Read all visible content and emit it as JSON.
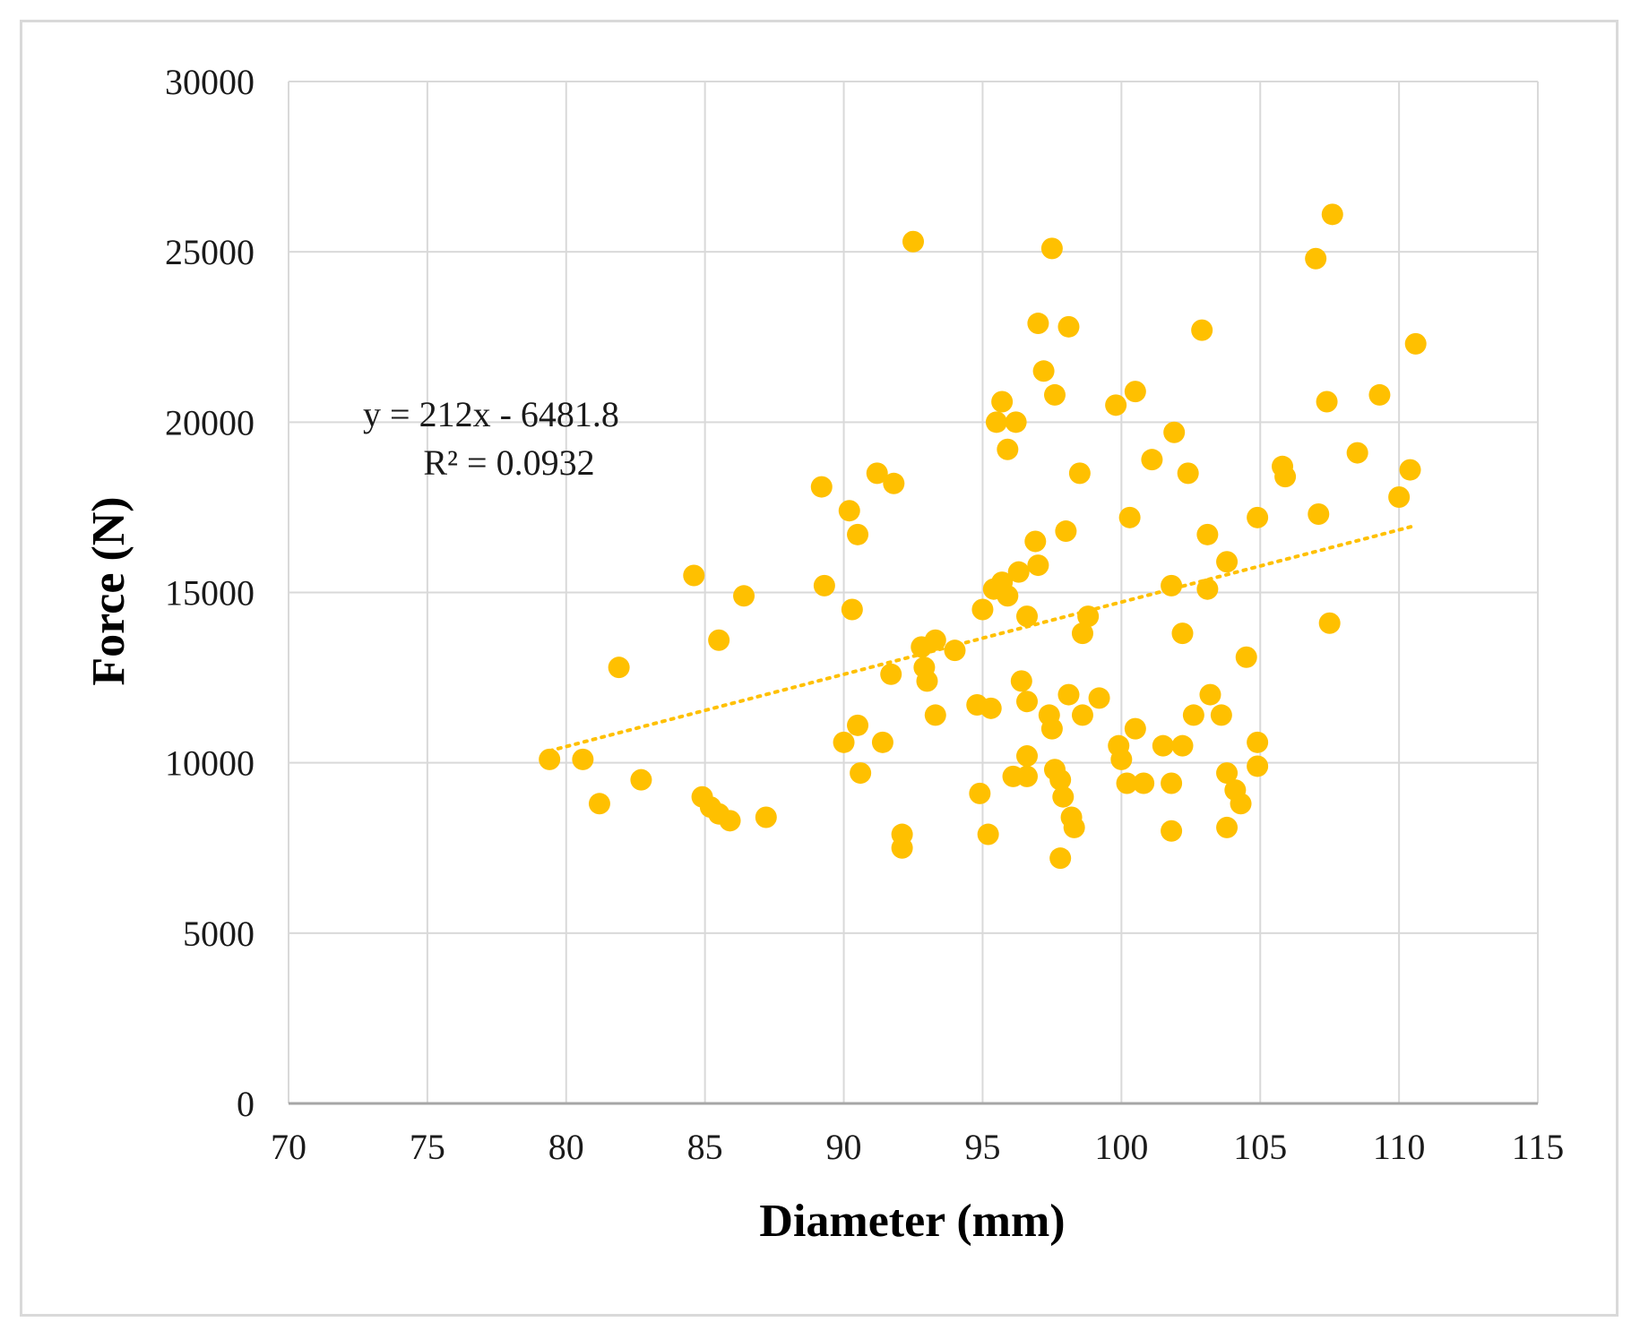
{
  "chart_data": {
    "type": "scatter",
    "title": "",
    "xlabel": "Diameter (mm)",
    "ylabel": "Force (N)",
    "xlim": [
      70,
      115
    ],
    "ylim": [
      0,
      30000
    ],
    "x_ticks": [
      "70",
      "75",
      "80",
      "85",
      "90",
      "95",
      "100",
      "105",
      "110",
      "115"
    ],
    "y_ticks": [
      "0",
      "5000",
      "10000",
      "15000",
      "20000",
      "25000",
      "30000"
    ],
    "grid": true,
    "legend": "none",
    "colors": {
      "points": "#FFC000",
      "trendline": "#FFC000",
      "grid": "#d9d9d9",
      "axis": "#a6a6a6"
    },
    "trendline": {
      "slope": 212,
      "intercept": -6481.8,
      "x_range": [
        79.4,
        110.6
      ],
      "equation": "y = 212x  - 6481.8",
      "r_squared": "R² = 0.0932"
    },
    "series": [
      {
        "points": [
          [
            79.4,
            10100
          ],
          [
            80.6,
            10100
          ],
          [
            81.2,
            8800
          ],
          [
            81.9,
            12800
          ],
          [
            82.7,
            9500
          ],
          [
            84.6,
            15500
          ],
          [
            84.9,
            9000
          ],
          [
            85.2,
            8700
          ],
          [
            85.5,
            13600
          ],
          [
            85.5,
            8500
          ],
          [
            85.9,
            8300
          ],
          [
            86.4,
            14900
          ],
          [
            87.2,
            8400
          ],
          [
            89.2,
            18100
          ],
          [
            89.3,
            15200
          ],
          [
            90.0,
            10600
          ],
          [
            90.2,
            17400
          ],
          [
            90.3,
            14500
          ],
          [
            90.5,
            16700
          ],
          [
            90.5,
            11100
          ],
          [
            90.6,
            9700
          ],
          [
            91.2,
            18500
          ],
          [
            91.4,
            10600
          ],
          [
            91.7,
            12600
          ],
          [
            91.8,
            18200
          ],
          [
            92.1,
            7900
          ],
          [
            92.1,
            7500
          ],
          [
            92.5,
            25300
          ],
          [
            92.8,
            13400
          ],
          [
            92.9,
            12800
          ],
          [
            93.0,
            12400
          ],
          [
            93.3,
            13600
          ],
          [
            93.3,
            11400
          ],
          [
            94.0,
            13300
          ],
          [
            94.8,
            11700
          ],
          [
            94.9,
            9100
          ],
          [
            95.0,
            14500
          ],
          [
            95.2,
            7900
          ],
          [
            95.3,
            11600
          ],
          [
            95.4,
            15100
          ],
          [
            95.5,
            20000
          ],
          [
            95.7,
            20600
          ],
          [
            95.7,
            15300
          ],
          [
            95.9,
            19200
          ],
          [
            95.9,
            14900
          ],
          [
            96.1,
            9600
          ],
          [
            96.2,
            20000
          ],
          [
            96.3,
            15600
          ],
          [
            96.4,
            12400
          ],
          [
            96.6,
            14300
          ],
          [
            96.6,
            11800
          ],
          [
            96.6,
            10200
          ],
          [
            96.6,
            9600
          ],
          [
            96.9,
            16500
          ],
          [
            97.0,
            22900
          ],
          [
            97.0,
            15800
          ],
          [
            97.2,
            21500
          ],
          [
            97.4,
            11400
          ],
          [
            97.5,
            11000
          ],
          [
            97.5,
            25100
          ],
          [
            97.6,
            20800
          ],
          [
            97.6,
            9800
          ],
          [
            97.8,
            9500
          ],
          [
            97.8,
            7200
          ],
          [
            97.9,
            9000
          ],
          [
            98.0,
            16800
          ],
          [
            98.1,
            22800
          ],
          [
            98.1,
            12000
          ],
          [
            98.2,
            8400
          ],
          [
            98.3,
            8100
          ],
          [
            98.5,
            18500
          ],
          [
            98.6,
            13800
          ],
          [
            98.6,
            11400
          ],
          [
            98.8,
            14300
          ],
          [
            99.2,
            11900
          ],
          [
            99.8,
            20500
          ],
          [
            99.9,
            10500
          ],
          [
            100.0,
            10100
          ],
          [
            100.2,
            9400
          ],
          [
            100.3,
            17200
          ],
          [
            100.5,
            20900
          ],
          [
            100.5,
            11000
          ],
          [
            100.8,
            9400
          ],
          [
            101.1,
            18900
          ],
          [
            101.5,
            10500
          ],
          [
            101.8,
            15200
          ],
          [
            101.8,
            9400
          ],
          [
            101.8,
            8000
          ],
          [
            101.9,
            19700
          ],
          [
            102.2,
            13800
          ],
          [
            102.2,
            10500
          ],
          [
            102.4,
            18500
          ],
          [
            102.6,
            11400
          ],
          [
            102.9,
            22700
          ],
          [
            103.1,
            16700
          ],
          [
            103.1,
            15100
          ],
          [
            103.2,
            12000
          ],
          [
            103.6,
            11400
          ],
          [
            103.8,
            15900
          ],
          [
            103.8,
            9700
          ],
          [
            103.8,
            8100
          ],
          [
            104.1,
            9200
          ],
          [
            104.3,
            8800
          ],
          [
            104.5,
            13100
          ],
          [
            104.9,
            17200
          ],
          [
            104.9,
            10600
          ],
          [
            104.9,
            9900
          ],
          [
            105.8,
            18700
          ],
          [
            105.9,
            18400
          ],
          [
            107.0,
            24800
          ],
          [
            107.1,
            17300
          ],
          [
            107.4,
            20600
          ],
          [
            107.5,
            14100
          ],
          [
            107.6,
            26100
          ],
          [
            108.5,
            19100
          ],
          [
            109.3,
            20800
          ],
          [
            110.0,
            17800
          ],
          [
            110.4,
            18600
          ],
          [
            110.6,
            22300
          ]
        ]
      }
    ]
  }
}
